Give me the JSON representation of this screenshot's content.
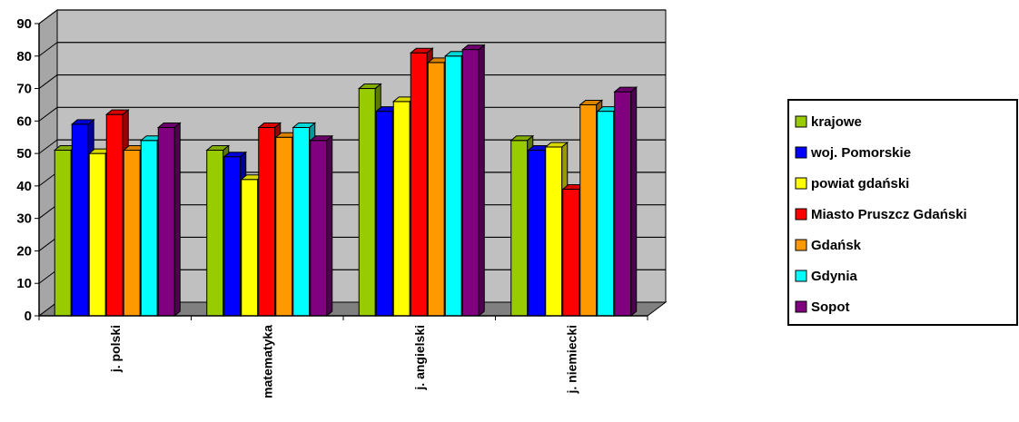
{
  "chart_data": {
    "type": "bar",
    "title": "",
    "xlabel": "",
    "ylabel": "",
    "ylim": [
      0,
      90
    ],
    "yticks": [
      "0",
      "10",
      "20",
      "30",
      "40",
      "50",
      "60",
      "70",
      "80",
      "90"
    ],
    "grid": true,
    "legend_position": "right",
    "categories": [
      "j. polski",
      "matematyka",
      "j. angielski",
      "j. niemiecki"
    ],
    "series": [
      {
        "name": "krajowe",
        "color": "#99cc00",
        "values": [
          51,
          51,
          70,
          54
        ]
      },
      {
        "name": "woj. Pomorskie",
        "color": "#0000ff",
        "values": [
          59,
          49,
          63,
          51
        ]
      },
      {
        "name": "powiat gdański",
        "color": "#ffff00",
        "values": [
          50,
          42,
          66,
          52
        ]
      },
      {
        "name": "Miasto Pruszcz Gdański",
        "color": "#ff0000",
        "values": [
          62,
          58,
          81,
          39
        ]
      },
      {
        "name": "Gdańsk",
        "color": "#ff9900",
        "values": [
          51,
          55,
          78,
          65
        ]
      },
      {
        "name": "Gdynia",
        "color": "#00ffff",
        "values": [
          54,
          58,
          80,
          63
        ]
      },
      {
        "name": "Sopot",
        "color": "#800080",
        "values": [
          58,
          54,
          82,
          69
        ]
      }
    ]
  }
}
